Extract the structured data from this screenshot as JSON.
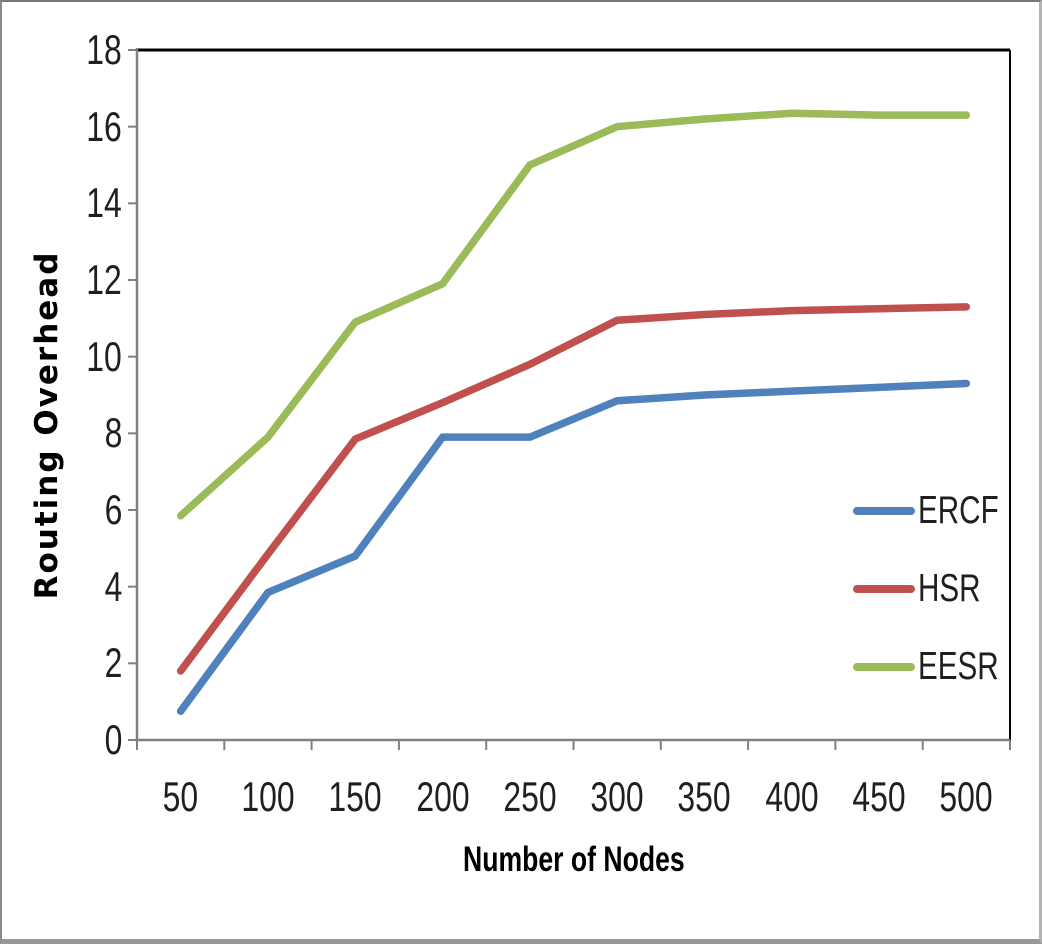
{
  "chart_data": {
    "type": "line",
    "xlabel": "Number of Nodes",
    "ylabel": "Routing Overhead",
    "categories": [
      50,
      100,
      150,
      200,
      250,
      300,
      350,
      400,
      450,
      500
    ],
    "series": [
      {
        "name": "ERCF",
        "color": "#4F81BD",
        "values": [
          0.75,
          3.85,
          4.8,
          7.9,
          7.9,
          8.85,
          9.0,
          9.1,
          9.2,
          9.3
        ]
      },
      {
        "name": "HSR",
        "color": "#C0504D",
        "values": [
          1.8,
          4.85,
          7.85,
          8.8,
          9.8,
          10.95,
          11.1,
          11.2,
          11.25,
          11.3
        ]
      },
      {
        "name": "EESR",
        "color": "#9BBB59",
        "values": [
          5.85,
          7.9,
          10.9,
          11.9,
          15.0,
          16.0,
          16.2,
          16.35,
          16.3,
          16.3
        ]
      }
    ],
    "ylim": [
      0,
      18
    ],
    "ytick_step": 2,
    "grid": false,
    "legend_position": "inside-right",
    "axis_color": "#808080",
    "plot_border_color": "#000000",
    "tick_label_color": "#1f1f1f"
  }
}
